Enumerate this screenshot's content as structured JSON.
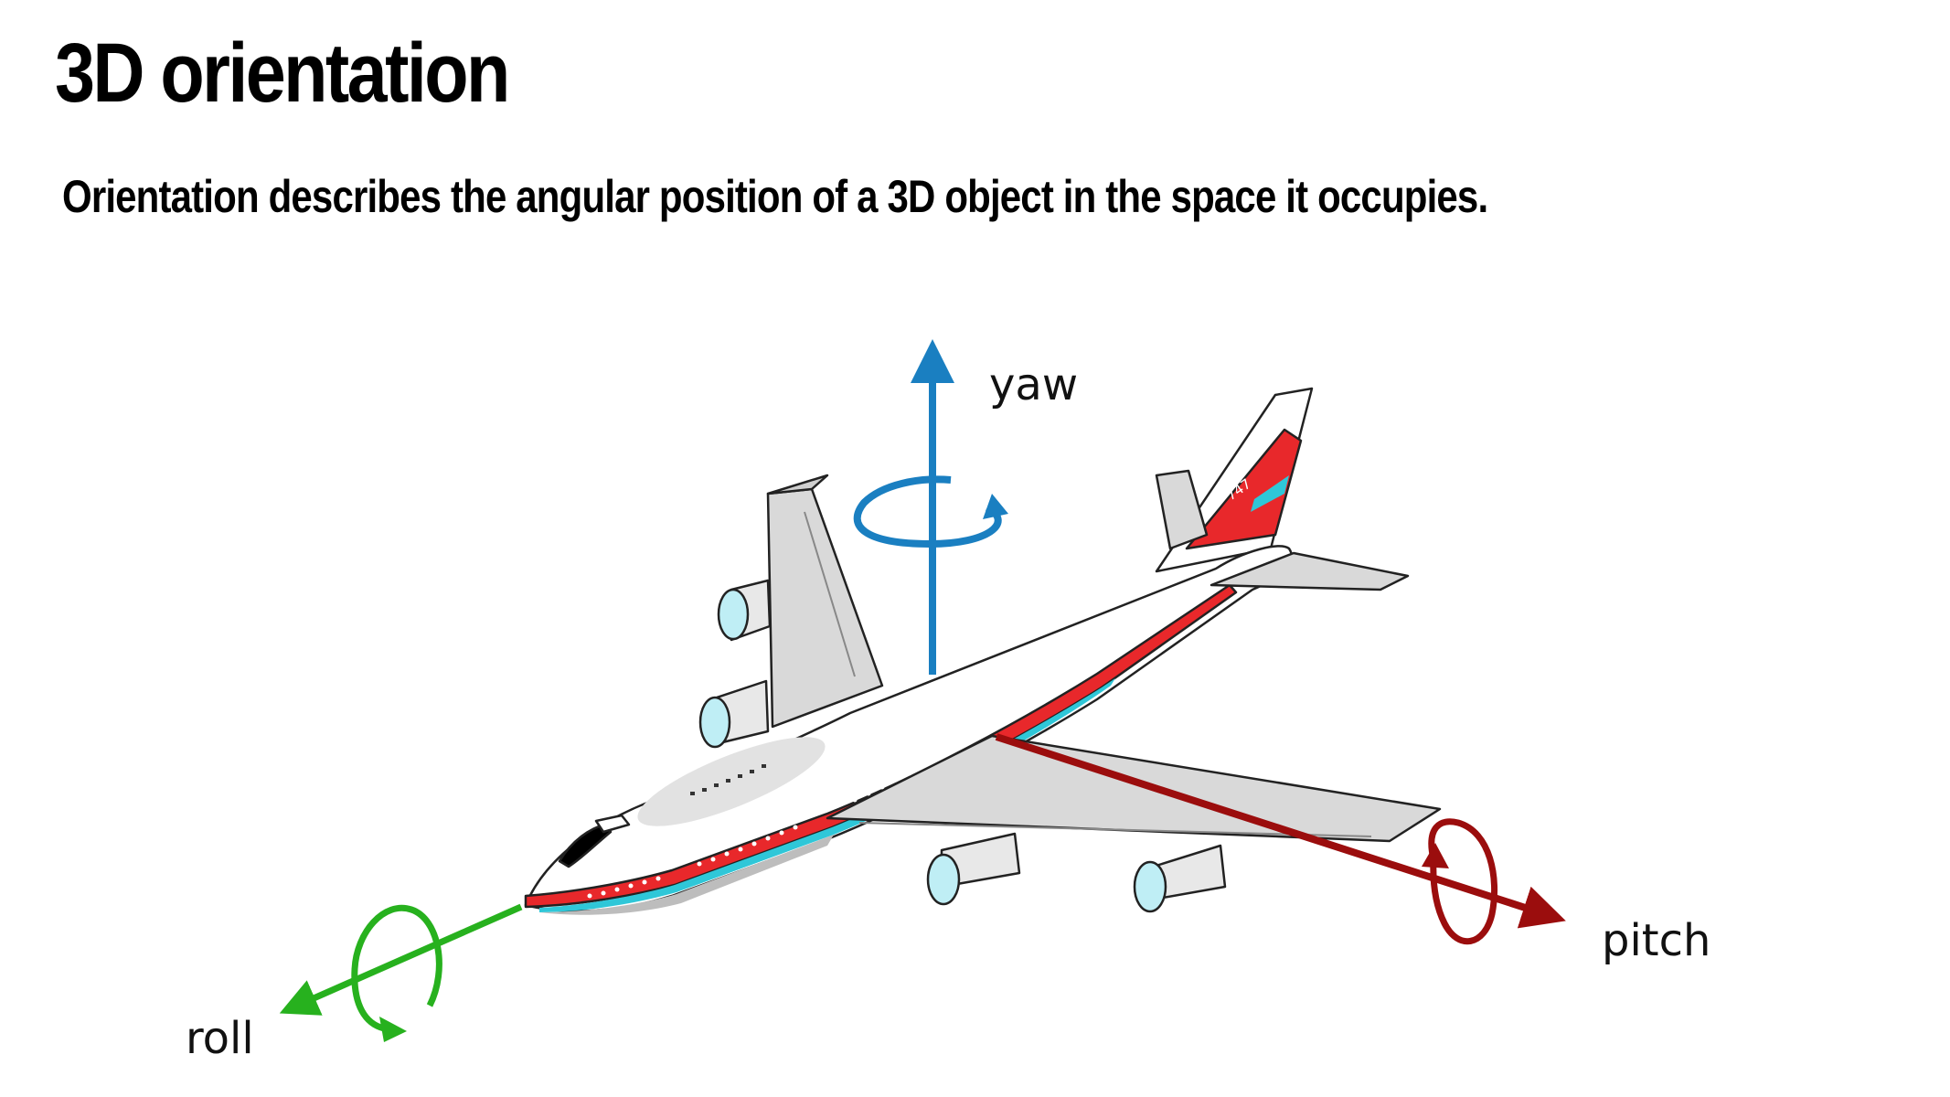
{
  "slide": {
    "title": "3D orientation",
    "subtitle": "Orientation describes the angular position of a 3D object in the space it occupies."
  },
  "airplane": {
    "tail_marking": "747"
  },
  "axes": {
    "yaw": {
      "label": "yaw",
      "color": "#1a7fc1",
      "icon": "rotation-arrow-icon"
    },
    "pitch": {
      "label": "pitch",
      "color": "#9b0d0d",
      "icon": "rotation-arrow-icon"
    },
    "roll": {
      "label": "roll",
      "color": "#27b11e",
      "icon": "rotation-arrow-icon"
    }
  },
  "colors": {
    "fuselage": "#ffffff",
    "stripe_red": "#e8282b",
    "stripe_cyan": "#2fc7d8",
    "wing": "#d9d9d9",
    "engine_intake": "#bfeef5"
  }
}
